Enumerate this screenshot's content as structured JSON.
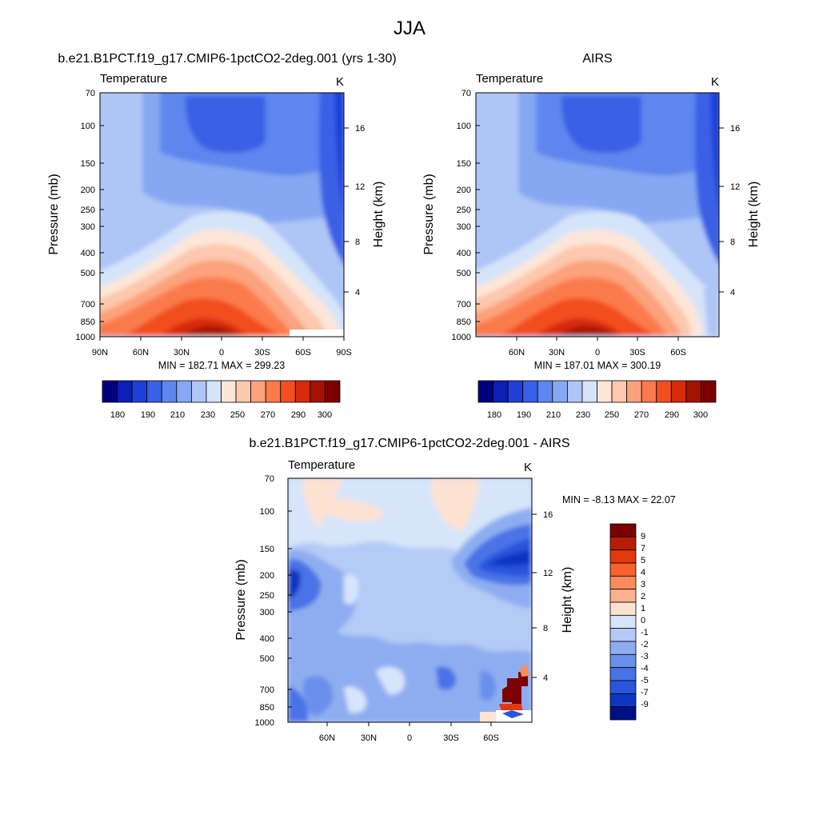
{
  "figure_title": "JJA",
  "chart_data": [
    {
      "type": "heatmap",
      "panel": "model",
      "title": "b.e21.B1PCT.f19_g17.CMIP6-1pctCO2-2deg.001 (yrs 1-30)",
      "left_label": "Temperature",
      "units": "K",
      "ylabel": "Pressure (mb)",
      "ylabel_right": "Height (km)",
      "pressure_ticks": [
        "70",
        "100",
        "150",
        "200",
        "250",
        "300",
        "400",
        "500",
        "700",
        "850",
        "1000"
      ],
      "pressure_values": [
        70,
        100,
        150,
        200,
        250,
        300,
        400,
        500,
        700,
        850,
        1000
      ],
      "height_ticks": [
        "16",
        "12",
        "8",
        "4"
      ],
      "height_values": [
        16,
        12,
        8,
        4
      ],
      "lat_ticks": [
        "90N",
        "60N",
        "30N",
        "0",
        "30S",
        "60S",
        "90S"
      ],
      "lat_values": [
        90,
        60,
        30,
        0,
        -30,
        -60,
        -90
      ],
      "lat_range": [
        90,
        -90
      ],
      "stats": "MIN = 182.71  MAX = 299.23",
      "min": 182.71,
      "max": 299.23,
      "colorbar_labels": [
        "180",
        "190",
        "210",
        "230",
        "250",
        "270",
        "290",
        "300"
      ],
      "colorbar_levels": [
        180,
        185,
        190,
        200,
        210,
        220,
        230,
        240,
        250,
        260,
        270,
        280,
        290,
        295,
        300
      ]
    },
    {
      "type": "heatmap",
      "panel": "obs",
      "title": "AIRS",
      "left_label": "Temperature",
      "units": "K",
      "ylabel": "Pressure (mb)",
      "ylabel_right": "Height (km)",
      "pressure_ticks": [
        "70",
        "100",
        "150",
        "200",
        "250",
        "300",
        "400",
        "500",
        "700",
        "850",
        "1000"
      ],
      "pressure_values": [
        70,
        100,
        150,
        200,
        250,
        300,
        400,
        500,
        700,
        850,
        1000
      ],
      "height_ticks": [
        "16",
        "12",
        "8",
        "4"
      ],
      "height_values": [
        16,
        12,
        8,
        4
      ],
      "lat_ticks": [
        "60N",
        "30N",
        "0",
        "30S",
        "60S"
      ],
      "lat_values": [
        60,
        30,
        0,
        -30,
        -60
      ],
      "lat_range": [
        90,
        -90
      ],
      "stats": "MIN = 187.01  MAX = 300.19",
      "min": 187.01,
      "max": 300.19,
      "colorbar_labels": [
        "180",
        "190",
        "210",
        "230",
        "250",
        "270",
        "290",
        "300"
      ],
      "colorbar_levels": [
        180,
        185,
        190,
        200,
        210,
        220,
        230,
        240,
        250,
        260,
        270,
        280,
        290,
        295,
        300
      ]
    },
    {
      "type": "heatmap",
      "panel": "diff",
      "title": "b.e21.B1PCT.f19_g17.CMIP6-1pctCO2-2deg.001 - AIRS",
      "left_label": "Temperature",
      "units": "K",
      "ylabel": "Pressure (mb)",
      "ylabel_right": "Height (km)",
      "pressure_ticks": [
        "70",
        "100",
        "150",
        "200",
        "250",
        "300",
        "400",
        "500",
        "700",
        "850",
        "1000"
      ],
      "pressure_values": [
        70,
        100,
        150,
        200,
        250,
        300,
        400,
        500,
        700,
        850,
        1000
      ],
      "height_ticks": [
        "16",
        "12",
        "8",
        "4"
      ],
      "height_values": [
        16,
        12,
        8,
        4
      ],
      "lat_ticks": [
        "60N",
        "30N",
        "0",
        "30S",
        "60S"
      ],
      "lat_values": [
        60,
        30,
        0,
        -30,
        -60
      ],
      "lat_range": [
        90,
        -90
      ],
      "stats": "MIN =  -8.13  MAX =  22.07",
      "min": -8.13,
      "max": 22.07,
      "colorbar_labels": [
        "9",
        "7",
        "5",
        "4",
        "3",
        "2",
        "1",
        "0",
        "-1",
        "-2",
        "-3",
        "-4",
        "-5",
        "-7",
        "-9"
      ],
      "colorbar_levels": [
        9,
        7,
        5,
        4,
        3,
        2,
        1,
        0,
        -1,
        -2,
        -3,
        -4,
        -5,
        -7,
        -9
      ]
    }
  ],
  "palettes": {
    "temperature": [
      "#00007f",
      "#0a1fb4",
      "#1f3fd8",
      "#3a60e6",
      "#5f86ee",
      "#86a8f2",
      "#aec6f6",
      "#d6e4fa",
      "#fde6d8",
      "#fdc8ad",
      "#fca27c",
      "#fb7a4c",
      "#f24e1f",
      "#d52a0b",
      "#a51204",
      "#7d0000"
    ],
    "difference": [
      "#7d0000",
      "#b71d06",
      "#e2380e",
      "#f5622c",
      "#fb8d5c",
      "#fcb18e",
      "#fde2d2",
      "#d7e5fa",
      "#b4cbf6",
      "#8eadf1",
      "#6b90ec",
      "#4873e6",
      "#2855dc",
      "#0f36c2",
      "#000e84"
    ]
  }
}
